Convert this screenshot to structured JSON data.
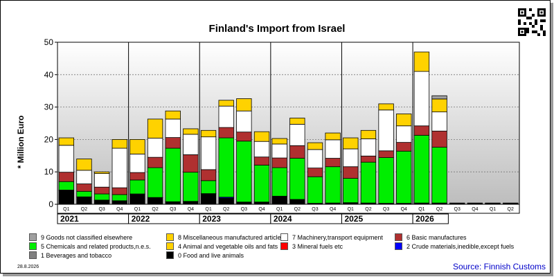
{
  "title": "Finland's Import from Israel",
  "source": "Source: Finnish Customs",
  "date": "28.8.2026",
  "chart_data": {
    "type": "bar",
    "stacked": true,
    "ylabel": "* Million Euro",
    "ylim": [
      0,
      50
    ],
    "yticks": [
      0,
      10,
      20,
      30,
      40,
      50
    ],
    "grid": true,
    "categories": [
      "Q1",
      "Q2",
      "Q3",
      "Q4",
      "Q1",
      "Q2",
      "Q3",
      "Q4",
      "Q1",
      "Q2",
      "Q3",
      "Q4",
      "Q1",
      "Q2",
      "Q3",
      "Q4",
      "Q1",
      "Q2",
      "Q3",
      "Q4",
      "Q1",
      "Q2",
      "Q3",
      "Q4",
      "Q1",
      "Q2"
    ],
    "years": [
      {
        "label": "2021",
        "quarters": 4
      },
      {
        "label": "2022",
        "quarters": 4
      },
      {
        "label": "2023",
        "quarters": 4
      },
      {
        "label": "2024",
        "quarters": 4
      },
      {
        "label": "2025",
        "quarters": 4
      },
      {
        "label": "2026",
        "quarters": 2
      }
    ],
    "series": [
      {
        "name": "0 Food and live animals",
        "color": "#000000",
        "values": [
          4.2,
          2.2,
          1.2,
          1.0,
          3.0,
          2.0,
          0.7,
          0.8,
          3.2,
          1.8,
          0.6,
          0.6,
          2.4,
          1.4,
          0.2,
          0.3,
          0.4,
          0.3,
          0.2,
          0.2,
          0.3,
          0.3,
          0.3,
          0.3,
          0.3,
          0.3
        ]
      },
      {
        "name": "1 Beverages and tobacco",
        "color": "#808080",
        "values": [
          0.2,
          0.1,
          0.1,
          0.1,
          0.2,
          0.1,
          0.1,
          0.1,
          0.1,
          0.1,
          0.1,
          0.1,
          0.1,
          0.1,
          0.1,
          0.1,
          0.1,
          0.1,
          0.1,
          0.1,
          0.1,
          0.1,
          0.1,
          0.1,
          0.1,
          0.1
        ]
      },
      {
        "name": "2 Crude materials,inedible,except fuels",
        "color": "#0000ff",
        "values": [
          0,
          0,
          0,
          0,
          0,
          0,
          0,
          0,
          0,
          0.3,
          0,
          0,
          0,
          0,
          0,
          0,
          0,
          0,
          0,
          0,
          0,
          0,
          0,
          0,
          0,
          0
        ]
      },
      {
        "name": "3 Mineral fuels etc",
        "color": "#ff0000",
        "values": [
          0,
          0,
          0,
          0,
          0,
          0,
          0,
          0,
          0,
          0,
          0,
          0,
          0,
          0,
          0,
          0,
          0,
          0,
          0,
          0,
          0,
          0,
          0,
          0,
          0,
          0
        ]
      },
      {
        "name": "5 Chemicals and related products,n.e.s.",
        "color": "#00ee00",
        "values": [
          2.6,
          1.7,
          1.9,
          1.9,
          4.3,
          9.2,
          16.5,
          9.0,
          4.0,
          18.3,
          18.8,
          11.4,
          8.8,
          12.7,
          8.2,
          11.2,
          7.5,
          12.6,
          14.1,
          16.1,
          20.9,
          17.2,
          0,
          0,
          0,
          0
        ]
      },
      {
        "name": "6 Basic manufactures",
        "color": "#b03030",
        "values": [
          2.9,
          2.3,
          2.1,
          2.1,
          2.3,
          3.2,
          3.3,
          5.4,
          3.4,
          3.2,
          2.8,
          2.5,
          3.0,
          3.9,
          2.7,
          2.6,
          3.6,
          1.9,
          2.1,
          2.7,
          2.9,
          5.0,
          0,
          0,
          0,
          0
        ]
      },
      {
        "name": "7 Machinery,transport equipment",
        "color": "#ffffff",
        "values": [
          8.3,
          4.2,
          4.2,
          12.2,
          5.7,
          5.9,
          5.7,
          6.3,
          10.1,
          6.6,
          6.5,
          4.8,
          4.3,
          6.6,
          5.7,
          5.7,
          5.5,
          5.3,
          12.6,
          5.1,
          16.8,
          5.9,
          0,
          0,
          0,
          0
        ]
      },
      {
        "name": "4 Animal and vegetable oils and fats",
        "color": "#ffd200",
        "values": [
          0,
          0,
          0,
          0,
          0,
          0,
          0,
          0,
          0,
          0,
          0,
          0,
          0,
          0,
          0,
          0,
          0,
          0,
          0,
          0,
          0,
          0,
          0,
          0,
          0,
          0
        ]
      },
      {
        "name": "8 Miscellaneous manufactured articles",
        "color": "#ffd200",
        "values": [
          2.3,
          3.5,
          0.5,
          2.7,
          4.5,
          5.9,
          2.5,
          1.7,
          2.0,
          1.8,
          3.8,
          3.0,
          1.7,
          1.9,
          2.1,
          2.1,
          3.4,
          2.6,
          1.9,
          3.7,
          6.0,
          4.0,
          0,
          0,
          0,
          0
        ]
      },
      {
        "name": "9 Goods not classified elsewhere",
        "color": "#a0a0a0",
        "values": [
          0,
          0,
          0,
          0,
          0,
          0,
          0,
          0,
          0,
          0,
          0,
          0,
          0,
          0,
          0,
          0,
          0,
          0,
          0,
          0,
          0,
          1.0,
          0,
          0,
          0,
          0
        ]
      }
    ]
  },
  "legend": [
    {
      "label": "9 Goods not classified elsewhere",
      "color": "#a0a0a0"
    },
    {
      "label": "8 Miscellaneous manufactured articles",
      "color": "#ffd200"
    },
    {
      "label": "7 Machinery,transport equipment",
      "color": "#ffffff"
    },
    {
      "label": "6 Basic manufactures",
      "color": "#b03030"
    },
    {
      "label": "5 Chemicals and related products,n.e.s.",
      "color": "#00ee00"
    },
    {
      "label": "4 Animal and vegetable oils and fats",
      "color": "#ffd200"
    },
    {
      "label": "3 Mineral fuels etc",
      "color": "#ff0000"
    },
    {
      "label": "2 Crude materials,inedible,except fuels",
      "color": "#0000ff"
    },
    {
      "label": "1 Beverages and tobacco",
      "color": "#808080"
    },
    {
      "label": "0 Food and live animals",
      "color": "#000000"
    }
  ]
}
